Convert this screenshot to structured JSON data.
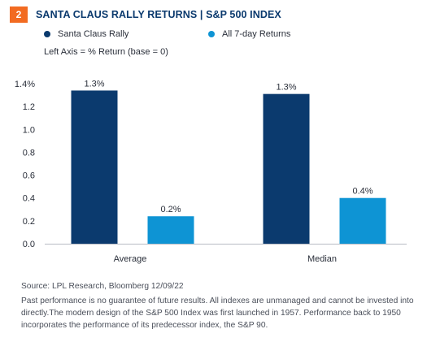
{
  "header": {
    "badge": "2",
    "title": "SANTA CLAUS RALLY RETURNS | S&P 500 INDEX"
  },
  "axis_note": "Left Axis = % Return (base = 0)",
  "colors": {
    "accent_orange": "#f26b21",
    "series_dark": "#0b3a6e",
    "series_light": "#0e94d4"
  },
  "chart_data": {
    "type": "bar",
    "categories": [
      "Average",
      "Median"
    ],
    "series": [
      {
        "name": "Santa Claus Rally",
        "values": [
          1.34,
          1.31
        ],
        "labels": [
          "1.3%",
          "1.3%"
        ],
        "color": "#0b3a6e"
      },
      {
        "name": "All 7-day Returns",
        "values": [
          0.24,
          0.4
        ],
        "labels": [
          "0.2%",
          "0.4%"
        ],
        "color": "#0e94d4"
      }
    ],
    "ylim": [
      0,
      1.4
    ],
    "yticks": [
      {
        "value": 0.0,
        "label": "0.0"
      },
      {
        "value": 0.2,
        "label": "0.2"
      },
      {
        "value": 0.4,
        "label": "0.4"
      },
      {
        "value": 0.6,
        "label": "0.6"
      },
      {
        "value": 0.8,
        "label": "0.8"
      },
      {
        "value": 1.0,
        "label": "1.0"
      },
      {
        "value": 1.2,
        "label": "1.2"
      },
      {
        "value": 1.4,
        "label": "1.4%"
      }
    ],
    "grid": false,
    "legend": "top"
  },
  "footer": {
    "source": "Source: LPL Research, Bloomberg  12/09/22",
    "disclaimer": "Past performance is no guarantee of future results. All indexes are unmanaged and cannot be invested into directly.The modern design of the S&P 500 Index was first launched in 1957. Performance back to 1950 incorporates the performance of its predecessor index, the S&P 90."
  }
}
